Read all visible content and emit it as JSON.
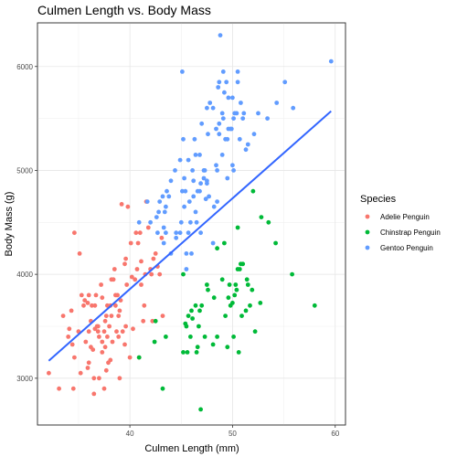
{
  "chart_data": {
    "type": "scatter",
    "title": "Culmen Length vs. Body Mass",
    "xlabel": "Culmen Length (mm)",
    "ylabel": "Body Mass (g)",
    "xlim": [
      31,
      61
    ],
    "ylim": [
      2550,
      6420
    ],
    "x_ticks": [
      40,
      50,
      60
    ],
    "y_ticks": [
      3000,
      4000,
      5000,
      6000
    ],
    "x_tick_labels": [
      "40",
      "50",
      "60"
    ],
    "y_tick_labels": [
      "3000",
      "4000",
      "5000",
      "6000"
    ],
    "grid": true,
    "legend": {
      "title": "Species",
      "position": "right"
    },
    "trend_line": {
      "color": "#3366FF",
      "x": [
        32.1,
        59.6
      ],
      "y": [
        3168,
        5570
      ]
    },
    "series": [
      {
        "name": "Adelie Penguin",
        "color": "#F8766D",
        "points": [
          [
            32.1,
            3050
          ],
          [
            33.1,
            2900
          ],
          [
            33.5,
            3600
          ],
          [
            34.0,
            3400
          ],
          [
            34.1,
            3475
          ],
          [
            34.4,
            3325
          ],
          [
            34.5,
            2900
          ],
          [
            34.6,
            3200
          ],
          [
            34.6,
            4400
          ],
          [
            35.0,
            3450
          ],
          [
            35.1,
            4200
          ],
          [
            35.2,
            3050
          ],
          [
            35.3,
            3800
          ],
          [
            35.5,
            3700
          ],
          [
            35.7,
            3350
          ],
          [
            35.9,
            3725
          ],
          [
            35.9,
            3100
          ],
          [
            36.0,
            3800
          ],
          [
            36.0,
            3450
          ],
          [
            36.2,
            3550
          ],
          [
            36.2,
            3300
          ],
          [
            36.3,
            3700
          ],
          [
            36.4,
            3275
          ],
          [
            36.5,
            3000
          ],
          [
            36.5,
            2850
          ],
          [
            36.6,
            3475
          ],
          [
            36.6,
            3700
          ],
          [
            36.7,
            3800
          ],
          [
            36.8,
            3500
          ],
          [
            36.9,
            3500
          ],
          [
            37.0,
            3400
          ],
          [
            37.0,
            3000
          ],
          [
            37.2,
            3900
          ],
          [
            37.3,
            3350
          ],
          [
            37.3,
            3775
          ],
          [
            37.5,
            3450
          ],
          [
            37.6,
            3300
          ],
          [
            37.6,
            3550
          ],
          [
            37.7,
            3600
          ],
          [
            37.8,
            3700
          ],
          [
            37.8,
            3400
          ],
          [
            37.9,
            3150
          ],
          [
            38.0,
            3500
          ],
          [
            38.1,
            3700
          ],
          [
            38.1,
            3175
          ],
          [
            38.2,
            3950
          ],
          [
            38.3,
            3350
          ],
          [
            38.5,
            4050
          ],
          [
            38.6,
            3800
          ],
          [
            38.6,
            3700
          ],
          [
            38.7,
            3450
          ],
          [
            38.8,
            3800
          ],
          [
            38.9,
            3600
          ],
          [
            39.0,
            3650
          ],
          [
            39.0,
            3000
          ],
          [
            39.1,
            3750
          ],
          [
            39.2,
            4675
          ],
          [
            39.3,
            3450
          ],
          [
            39.5,
            4100
          ],
          [
            39.6,
            3500
          ],
          [
            39.7,
            3900
          ],
          [
            39.8,
            4650
          ],
          [
            40.1,
            4300
          ],
          [
            40.2,
            3975
          ],
          [
            40.3,
            3475
          ],
          [
            40.5,
            3950
          ],
          [
            40.6,
            4400
          ],
          [
            40.7,
            4050
          ],
          [
            40.8,
            4300
          ],
          [
            40.9,
            3200
          ],
          [
            41.1,
            4125
          ],
          [
            41.1,
            3900
          ],
          [
            41.3,
            3550
          ],
          [
            41.4,
            3700
          ],
          [
            41.5,
            4000
          ],
          [
            41.6,
            4700
          ],
          [
            41.8,
            4450
          ],
          [
            42.0,
            4050
          ],
          [
            42.1,
            4000
          ],
          [
            42.2,
            3550
          ],
          [
            42.3,
            4150
          ],
          [
            42.5,
            4200
          ],
          [
            42.7,
            4075
          ],
          [
            42.9,
            4000
          ],
          [
            43.1,
            4350
          ],
          [
            43.2,
            3600
          ],
          [
            37.3,
            3250
          ],
          [
            37.5,
            2900
          ],
          [
            36.9,
            3450
          ],
          [
            38.9,
            3400
          ],
          [
            39.5,
            3325
          ],
          [
            40.0,
            3200
          ],
          [
            35.6,
            3750
          ],
          [
            36.0,
            3150
          ],
          [
            38.4,
            3950
          ],
          [
            37.7,
            3075
          ],
          [
            39.6,
            4150
          ],
          [
            41.0,
            4400
          ],
          [
            34.3,
            3650
          ],
          [
            38.2,
            3600
          ]
        ]
      },
      {
        "name": "Chinstrap Penguin",
        "color": "#00BA38",
        "points": [
          [
            40.9,
            3200
          ],
          [
            42.4,
            3350
          ],
          [
            42.5,
            3550
          ],
          [
            43.2,
            2900
          ],
          [
            43.5,
            3400
          ],
          [
            45.2,
            3250
          ],
          [
            45.4,
            3525
          ],
          [
            45.5,
            3500
          ],
          [
            45.6,
            3250
          ],
          [
            45.7,
            3600
          ],
          [
            45.9,
            3400
          ],
          [
            46.0,
            3650
          ],
          [
            46.1,
            3575
          ],
          [
            46.4,
            3700
          ],
          [
            46.5,
            3250
          ],
          [
            46.6,
            3300
          ],
          [
            46.7,
            3500
          ],
          [
            46.8,
            3650
          ],
          [
            46.9,
            2700
          ],
          [
            47.0,
            3700
          ],
          [
            47.5,
            3900
          ],
          [
            47.6,
            3850
          ],
          [
            48.1,
            3325
          ],
          [
            48.2,
            3775
          ],
          [
            48.5,
            3400
          ],
          [
            49.0,
            3950
          ],
          [
            49.2,
            4300
          ],
          [
            49.3,
            3600
          ],
          [
            49.5,
            3300
          ],
          [
            49.6,
            3775
          ],
          [
            49.8,
            3700
          ],
          [
            50.0,
            3725
          ],
          [
            50.1,
            3400
          ],
          [
            50.2,
            3800
          ],
          [
            50.3,
            3900
          ],
          [
            50.5,
            4050
          ],
          [
            50.6,
            3250
          ],
          [
            50.8,
            4100
          ],
          [
            50.9,
            3600
          ],
          [
            51.0,
            4100
          ],
          [
            51.3,
            3650
          ],
          [
            51.4,
            3950
          ],
          [
            51.5,
            3900
          ],
          [
            51.7,
            3700
          ],
          [
            51.9,
            3850
          ],
          [
            52.0,
            4800
          ],
          [
            52.2,
            3450
          ],
          [
            52.7,
            3725
          ],
          [
            52.8,
            4550
          ],
          [
            53.5,
            4500
          ],
          [
            54.2,
            4300
          ],
          [
            55.8,
            4000
          ],
          [
            58.0,
            3700
          ],
          [
            45.2,
            4000
          ],
          [
            49.7,
            3900
          ],
          [
            50.5,
            4450
          ],
          [
            48.5,
            4250
          ],
          [
            47.3,
            3400
          ],
          [
            50.7,
            4050
          ],
          [
            50.4,
            3850
          ]
        ]
      },
      {
        "name": "Gentoo Penguin",
        "color": "#619CFF",
        "points": [
          [
            40.9,
            4500
          ],
          [
            41.7,
            4700
          ],
          [
            42.0,
            4500
          ],
          [
            42.6,
            4550
          ],
          [
            42.7,
            4400
          ],
          [
            42.8,
            4600
          ],
          [
            42.9,
            4700
          ],
          [
            43.2,
            4750
          ],
          [
            43.3,
            4450
          ],
          [
            43.4,
            4600
          ],
          [
            43.5,
            4650
          ],
          [
            43.6,
            4800
          ],
          [
            43.8,
            4750
          ],
          [
            44.0,
            4200
          ],
          [
            44.4,
            5000
          ],
          [
            44.5,
            4350
          ],
          [
            44.9,
            5100
          ],
          [
            45.0,
            4500
          ],
          [
            45.1,
            4800
          ],
          [
            45.2,
            5300
          ],
          [
            45.3,
            4925
          ],
          [
            45.4,
            4800
          ],
          [
            45.5,
            4200
          ],
          [
            45.7,
            5100
          ],
          [
            45.8,
            4700
          ],
          [
            46.1,
            5000
          ],
          [
            46.2,
            4750
          ],
          [
            46.3,
            5300
          ],
          [
            46.4,
            4600
          ],
          [
            46.5,
            4500
          ],
          [
            46.6,
            4800
          ],
          [
            46.8,
            5150
          ],
          [
            46.9,
            4875
          ],
          [
            47.2,
            4925
          ],
          [
            47.3,
            5000
          ],
          [
            47.4,
            4725
          ],
          [
            47.5,
            4875
          ],
          [
            47.6,
            5350
          ],
          [
            47.7,
            4750
          ],
          [
            47.8,
            5650
          ],
          [
            48.1,
            5600
          ],
          [
            48.2,
            4650
          ],
          [
            48.4,
            5400
          ],
          [
            48.5,
            5000
          ],
          [
            48.6,
            5800
          ],
          [
            48.7,
            5350
          ],
          [
            48.8,
            6300
          ],
          [
            49.0,
            5550
          ],
          [
            49.1,
            5500
          ],
          [
            49.2,
            5750
          ],
          [
            49.3,
            5300
          ],
          [
            49.4,
            5850
          ],
          [
            49.5,
            5300
          ],
          [
            49.6,
            5700
          ],
          [
            49.8,
            5400
          ],
          [
            49.9,
            5400
          ],
          [
            50.0,
            5700
          ],
          [
            50.1,
            5000
          ],
          [
            50.2,
            5550
          ],
          [
            50.4,
            5550
          ],
          [
            50.5,
            5850
          ],
          [
            50.7,
            5300
          ],
          [
            50.8,
            5650
          ],
          [
            51.1,
            5550
          ],
          [
            51.3,
            5200
          ],
          [
            51.5,
            5250
          ],
          [
            52.1,
            5350
          ],
          [
            52.5,
            5550
          ],
          [
            53.4,
            5500
          ],
          [
            54.3,
            5650
          ],
          [
            55.1,
            5850
          ],
          [
            55.9,
            5600
          ],
          [
            59.6,
            6050
          ],
          [
            45.1,
            5950
          ],
          [
            49.1,
            5950
          ],
          [
            48.7,
            5850
          ],
          [
            50.0,
            5050
          ],
          [
            44.0,
            4900
          ],
          [
            43.5,
            4400
          ],
          [
            47.0,
            5450
          ],
          [
            49.5,
            4925
          ],
          [
            46.4,
            5150
          ],
          [
            48.4,
            5050
          ],
          [
            45.9,
            4500
          ],
          [
            46.2,
            4900
          ],
          [
            50.5,
            5950
          ],
          [
            47.5,
            5600
          ],
          [
            48.1,
            4300
          ],
          [
            45.5,
            4050
          ],
          [
            44.5,
            4400
          ],
          [
            46.9,
            4400
          ],
          [
            47.5,
            4900
          ],
          [
            49.0,
            5150
          ],
          [
            44.9,
            4400
          ],
          [
            45.3,
            4650
          ],
          [
            43.3,
            4300
          ],
          [
            46.8,
            4800
          ],
          [
            48.5,
            4700
          ],
          [
            45.7,
            4400
          ],
          [
            50.1,
            5500
          ],
          [
            51.0,
            5500
          ],
          [
            48.7,
            5450
          ],
          [
            47.2,
            5000
          ],
          [
            46.0,
            4200
          ],
          [
            49.6,
            5400
          ]
        ]
      }
    ]
  }
}
